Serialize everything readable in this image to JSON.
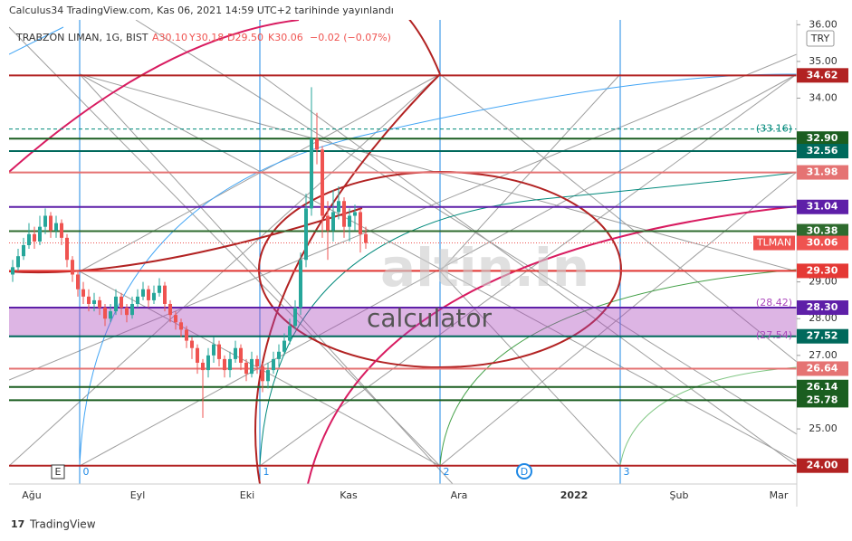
{
  "header": {
    "published": "Calculus34 TradingView.com, Kas 06, 2021 14:59 UTC+2 tarihinde yayınlandı",
    "symbol": "TRABZON LIMAN, 1G, BIST",
    "open": "A30.10",
    "high": "Y30.18",
    "low": "D29.50",
    "close": "K30.06",
    "change": "−0.02 (−0.07%)",
    "currency": "TRY",
    "footer": "TradingView",
    "watermark": "altin.in",
    "watermark_sub": "calculator"
  },
  "chart_data": {
    "type": "candlestick",
    "up_color": "#26a69a",
    "down_color": "#ef5350",
    "open": [
      29.2,
      29.4,
      29.7,
      30.0,
      30.3,
      30.1,
      30.5,
      30.8,
      30.4,
      30.6,
      30.2,
      29.6,
      29.2,
      28.8,
      28.6,
      28.4,
      28.5,
      28.3,
      28.0,
      28.2,
      28.6,
      28.3,
      28.1,
      28.4,
      28.6,
      28.8,
      28.5,
      28.7,
      28.9,
      28.4,
      28.1,
      27.9,
      27.7,
      27.4,
      27.2,
      26.8,
      26.6,
      27.0,
      27.3,
      26.9,
      26.6,
      26.9,
      27.2,
      26.8,
      26.5,
      26.9,
      26.7,
      26.3,
      26.6,
      26.9,
      27.1,
      27.4,
      27.8,
      28.3,
      29.6,
      31.0,
      32.9,
      32.6,
      30.8,
      30.4,
      30.9,
      31.2,
      30.5,
      30.8,
      30.9,
      30.3
    ],
    "high": [
      29.6,
      29.9,
      30.2,
      30.6,
      30.5,
      30.8,
      31.0,
      30.9,
      30.8,
      30.7,
      30.3,
      29.7,
      29.3,
      29.0,
      28.8,
      28.7,
      28.6,
      28.4,
      28.4,
      28.8,
      28.7,
      28.4,
      28.6,
      28.8,
      29.0,
      28.9,
      28.9,
      29.1,
      29.0,
      28.5,
      28.2,
      28.0,
      27.8,
      27.5,
      27.3,
      26.9,
      27.2,
      27.5,
      27.4,
      27.0,
      27.1,
      27.4,
      27.3,
      26.9,
      27.1,
      27.0,
      26.8,
      26.8,
      27.1,
      27.3,
      27.6,
      28.0,
      28.5,
      29.8,
      31.4,
      34.3,
      33.6,
      32.7,
      31.2,
      31.5,
      31.6,
      31.3,
      31.0,
      31.1,
      31.0,
      30.5
    ],
    "low": [
      29.0,
      29.3,
      29.6,
      29.9,
      29.9,
      30.0,
      30.3,
      30.2,
      30.2,
      30.0,
      29.4,
      29.0,
      28.6,
      28.4,
      28.2,
      28.2,
      28.1,
      27.8,
      27.9,
      28.1,
      28.1,
      27.9,
      28.0,
      28.3,
      28.5,
      28.3,
      28.4,
      28.6,
      28.2,
      27.9,
      27.7,
      27.5,
      27.2,
      26.9,
      26.5,
      25.3,
      26.4,
      26.8,
      26.7,
      26.4,
      26.4,
      26.8,
      26.6,
      26.3,
      26.4,
      26.5,
      26.0,
      26.1,
      26.5,
      26.7,
      27.0,
      27.3,
      27.7,
      28.1,
      29.4,
      30.8,
      32.2,
      30.2,
      29.6,
      30.1,
      30.7,
      30.2,
      30.1,
      30.4,
      29.8,
      29.9
    ],
    "close": [
      29.4,
      29.7,
      30.0,
      30.3,
      30.1,
      30.5,
      30.8,
      30.4,
      30.6,
      30.2,
      29.6,
      29.2,
      28.8,
      28.6,
      28.4,
      28.5,
      28.3,
      28.0,
      28.2,
      28.6,
      28.3,
      28.1,
      28.4,
      28.6,
      28.8,
      28.5,
      28.7,
      28.9,
      28.4,
      28.1,
      27.9,
      27.7,
      27.4,
      27.2,
      26.8,
      26.6,
      27.0,
      27.3,
      26.9,
      26.6,
      26.9,
      27.2,
      26.8,
      26.5,
      26.9,
      26.7,
      26.3,
      26.6,
      26.9,
      27.1,
      27.4,
      27.8,
      28.3,
      29.6,
      31.0,
      32.9,
      32.6,
      30.8,
      30.4,
      30.9,
      31.2,
      30.5,
      30.8,
      30.9,
      30.3,
      30.06
    ],
    "ylim": [
      23.5,
      36.13
    ],
    "yticks": [
      {
        "value": 25,
        "label": "25.00"
      },
      {
        "value": 27,
        "label": "27.00"
      },
      {
        "value": 28,
        "label": "28.00"
      },
      {
        "value": 29,
        "label": "29.00"
      },
      {
        "value": 34,
        "label": "34.00"
      },
      {
        "value": 35,
        "label": "35.00"
      },
      {
        "value": 36,
        "label": "36.00"
      }
    ],
    "x_labels": [
      "Ağu",
      "Eyl",
      "Eki",
      "Kas",
      "Ara",
      "2022",
      "Şub",
      "Mar"
    ],
    "levels": [
      {
        "value": 34.62,
        "color": "#b22222"
      },
      {
        "value": 32.9,
        "label": "32.90",
        "color": "#1b5e20"
      },
      {
        "value": 32.56,
        "color": "#00695c"
      },
      {
        "value": 31.98,
        "color": "#e57373"
      },
      {
        "value": 31.04,
        "color": "#5e1fa8"
      },
      {
        "value": 30.38,
        "color": "#2e6b2e"
      },
      {
        "value": 29.3,
        "label": "29.30",
        "color": "#e53935"
      },
      {
        "value": 28.3,
        "label": "28.30",
        "color": "#5e1fa8"
      },
      {
        "value": 27.52,
        "color": "#00695c"
      },
      {
        "value": 26.64,
        "color": "#e57373"
      },
      {
        "value": 26.14,
        "color": "#1b5e20"
      },
      {
        "value": 25.78,
        "color": "#1b5e20"
      },
      {
        "value": 24,
        "label": "24.00",
        "color": "#b22222"
      }
    ],
    "last_price": {
      "name": "TLMAN",
      "value": 30.06,
      "color": "#ef5350"
    },
    "annotations": [
      {
        "value": 33.16,
        "label": "(33.16)",
        "color": "#00897b"
      },
      {
        "value": 28.42,
        "label": "(28.42)",
        "color": "#ab47bc"
      },
      {
        "value": 27.54,
        "label": "(27.54)",
        "color": "#ab47bc"
      }
    ],
    "markers": [
      "E",
      "0",
      "1",
      "2",
      "D",
      "3"
    ]
  }
}
